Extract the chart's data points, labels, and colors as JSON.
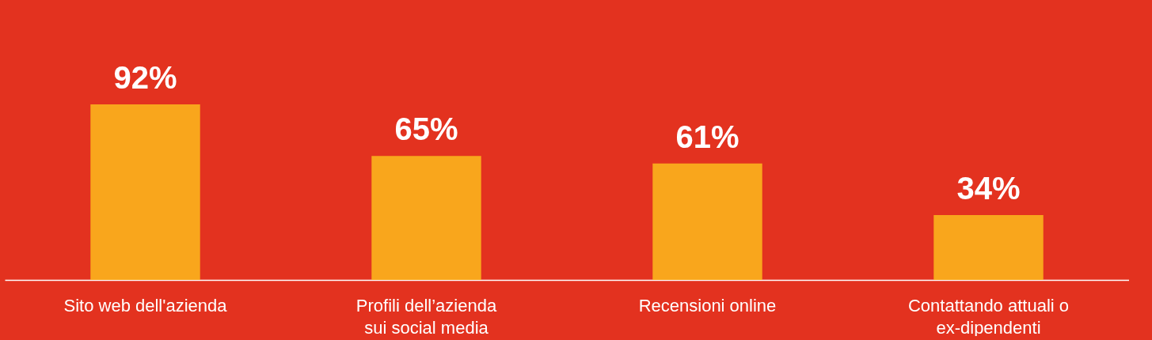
{
  "chart_data": {
    "type": "bar",
    "categories": [
      "Sito web dell'azienda",
      "Profili dell’azienda sui social media",
      "Recensioni online",
      "Contattando attuali o ex-dipendenti"
    ],
    "values": [
      92,
      65,
      61,
      34
    ],
    "value_labels": [
      "92%",
      "65%",
      "61%",
      "34%"
    ],
    "color": "#f9a61c"
  }
}
